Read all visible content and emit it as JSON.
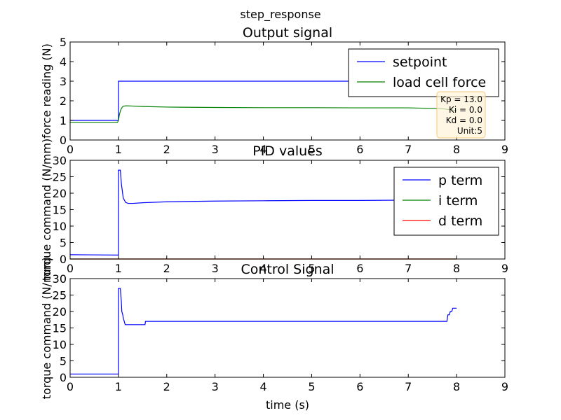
{
  "figure": {
    "suptitle": "step_response"
  },
  "colors": {
    "setpoint": "#0000ff",
    "load": "#008000",
    "p": "#0000ff",
    "i": "#008000",
    "d": "#ff0000",
    "ann_face": "#fff2d9",
    "ann_edge": "#f5c87a"
  },
  "chart_data": [
    {
      "type": "line",
      "title": "Output signal",
      "xlabel": "",
      "ylabel": "force reading (N)",
      "xlim": [
        0,
        9
      ],
      "ylim": [
        0,
        5
      ],
      "xticks": [
        "0",
        "1",
        "2",
        "3",
        "4",
        "5",
        "6",
        "7",
        "8",
        "9"
      ],
      "yticks": [
        "0",
        "1",
        "2",
        "3",
        "4",
        "5"
      ],
      "legend_position": "top-right",
      "grid": false,
      "annotation": [
        "Kp = 13.0",
        "Ki = 0.0",
        "Kd = 0.0",
        "Unit:5"
      ],
      "series": [
        {
          "name": "setpoint",
          "color": "#0000ff",
          "x": [
            0,
            0.999,
            1.0,
            8.0
          ],
          "y": [
            1.0,
            1.0,
            3.0,
            3.0
          ]
        },
        {
          "name": "load cell force",
          "color": "#008000",
          "x": [
            0,
            0.98,
            1.0,
            1.02,
            1.05,
            1.08,
            1.1,
            1.15,
            1.2,
            1.3,
            1.5,
            2.0,
            3.0,
            4.0,
            5.0,
            6.0,
            7.0,
            7.7,
            8.0
          ],
          "y": [
            0.9,
            0.9,
            1.0,
            1.3,
            1.55,
            1.68,
            1.72,
            1.74,
            1.74,
            1.73,
            1.71,
            1.68,
            1.66,
            1.65,
            1.65,
            1.64,
            1.64,
            1.6,
            1.5
          ]
        }
      ]
    },
    {
      "type": "line",
      "title": "PID values",
      "xlabel": "",
      "ylabel": "torque command (N/mm)",
      "xlim": [
        0,
        9
      ],
      "ylim": [
        0,
        30
      ],
      "xticks": [
        "0",
        "1",
        "2",
        "3",
        "4",
        "5",
        "6",
        "7",
        "8",
        "9"
      ],
      "yticks": [
        "0",
        "5",
        "10",
        "15",
        "20",
        "25",
        "30"
      ],
      "legend_position": "top-right",
      "grid": false,
      "series": [
        {
          "name": "p term",
          "color": "#0000ff",
          "x": [
            0,
            0.999,
            1.0,
            1.04,
            1.06,
            1.1,
            1.15,
            1.2,
            1.3,
            1.5,
            2.0,
            3.0,
            4.0,
            5.0,
            6.0,
            7.0,
            7.8,
            8.0
          ],
          "y": [
            1.3,
            1.2,
            27.0,
            27.0,
            23.0,
            18.5,
            17.2,
            16.9,
            16.9,
            17.1,
            17.4,
            17.6,
            17.7,
            17.8,
            17.8,
            17.9,
            18.2,
            18.5
          ]
        },
        {
          "name": "i term",
          "color": "#008000",
          "x": [
            0,
            8.0
          ],
          "y": [
            0,
            0
          ]
        },
        {
          "name": "d term",
          "color": "#ff0000",
          "x": [
            0,
            8.0
          ],
          "y": [
            0,
            0
          ]
        }
      ]
    },
    {
      "type": "line",
      "title": "Control Signal",
      "xlabel": "time (s)",
      "ylabel": "torque command (N/mm)",
      "xlim": [
        0,
        9
      ],
      "ylim": [
        0,
        30
      ],
      "xticks": [
        "0",
        "1",
        "2",
        "3",
        "4",
        "5",
        "6",
        "7",
        "8",
        "9"
      ],
      "yticks": [
        "0",
        "5",
        "10",
        "15",
        "20",
        "25",
        "30"
      ],
      "legend_position": "none",
      "grid": false,
      "series": [
        {
          "name": "",
          "color": "#0000ff",
          "x": [
            0,
            0.999,
            1.0,
            1.04,
            1.06,
            1.07,
            1.09,
            1.1,
            1.12,
            1.14,
            1.16,
            1.55,
            1.56,
            7.8,
            7.82,
            7.85,
            7.87,
            7.9,
            7.92,
            8.0
          ],
          "y": [
            1.0,
            1.0,
            27.0,
            27.0,
            23.0,
            20.0,
            19.0,
            18.0,
            17.0,
            16.0,
            16.0,
            16.0,
            17.0,
            17.0,
            19.0,
            19.0,
            20.0,
            20.0,
            21.0,
            21.0
          ]
        }
      ]
    }
  ]
}
